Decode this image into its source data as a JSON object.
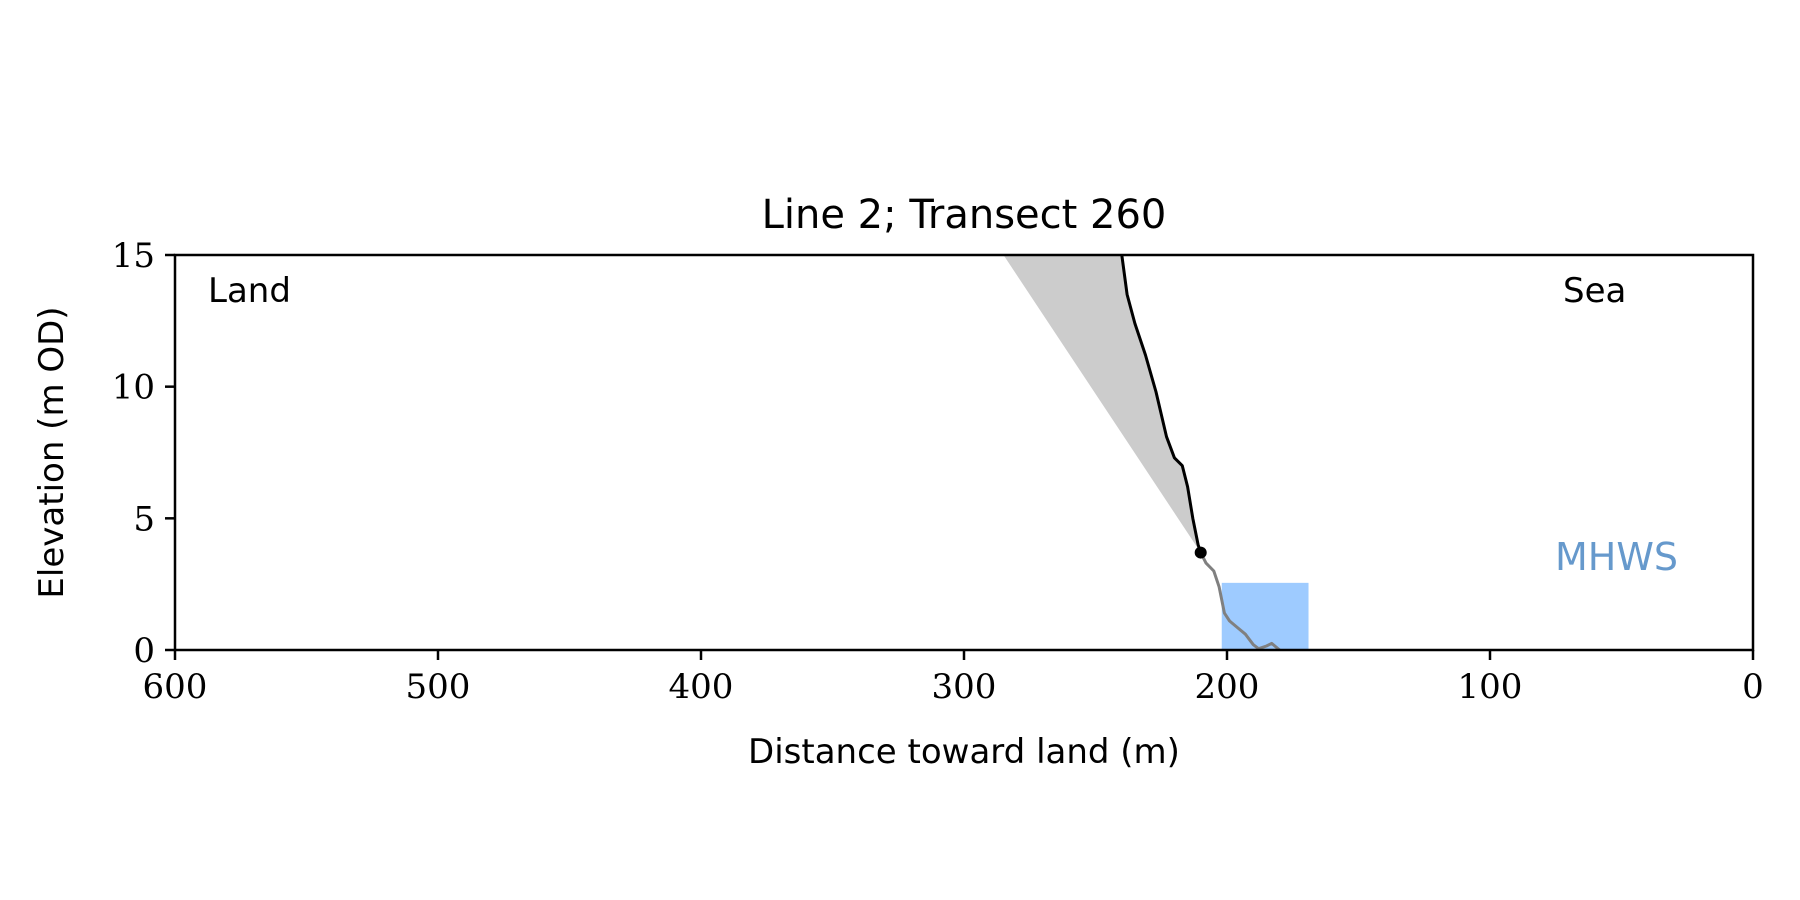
{
  "chart_data": {
    "type": "line",
    "title": "Line 2; Transect 260",
    "xlabel": "Distance toward land (m)",
    "ylabel": "Elevation (m OD)",
    "xlim": [
      600,
      0
    ],
    "ylim": [
      0,
      15
    ],
    "x_ticks": [
      600,
      500,
      400,
      300,
      200,
      100,
      0
    ],
    "y_ticks": [
      0,
      5,
      10,
      15
    ],
    "grid": false,
    "annotations": {
      "land": "Land",
      "sea": "Sea",
      "mhws": "MHWS"
    },
    "series": [
      {
        "role": "cliff-profile",
        "color": "#000000",
        "points": [
          [
            240,
            15
          ],
          [
            238,
            13.5
          ],
          [
            235,
            12.4
          ],
          [
            231,
            11.2
          ],
          [
            227,
            9.8
          ],
          [
            223,
            8.1
          ],
          [
            220,
            7.3
          ],
          [
            217,
            7.0
          ],
          [
            215,
            6.2
          ],
          [
            213,
            5.0
          ],
          [
            211,
            4.0
          ],
          [
            210,
            3.7
          ]
        ]
      },
      {
        "role": "cliff-toe-profile",
        "color": "#808080",
        "points": [
          [
            210,
            3.7
          ],
          [
            208,
            3.3
          ],
          [
            205,
            3.0
          ],
          [
            203,
            2.4
          ],
          [
            201,
            1.4
          ],
          [
            199,
            1.1
          ],
          [
            196,
            0.85
          ],
          [
            193,
            0.6
          ],
          [
            190,
            0.2
          ],
          [
            188,
            0.05
          ],
          [
            185,
            0.15
          ],
          [
            183,
            0.25
          ],
          [
            180,
            0.0
          ]
        ]
      }
    ],
    "cliff_top_marker": {
      "x": 210,
      "y": 3.7,
      "color": "#000000"
    },
    "shaded_wedge": {
      "color": "#cccccc",
      "points": [
        [
          285,
          15
        ],
        [
          240,
          15
        ],
        [
          238,
          13.5
        ],
        [
          235,
          12.4
        ],
        [
          231,
          11.2
        ],
        [
          227,
          9.8
        ],
        [
          223,
          8.1
        ],
        [
          220,
          7.3
        ],
        [
          217,
          7.0
        ],
        [
          215,
          6.2
        ],
        [
          213,
          5.0
        ],
        [
          211,
          4.0
        ],
        [
          210,
          3.7
        ]
      ]
    },
    "mhws_band": {
      "x_range": [
        202,
        169
      ],
      "y_range": [
        0,
        2.55
      ],
      "color": "#9ecbff",
      "label_color": "#6699cc"
    }
  }
}
